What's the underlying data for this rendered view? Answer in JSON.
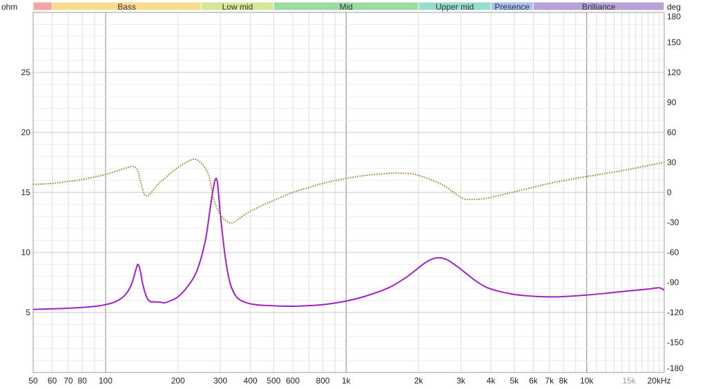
{
  "chart_data": {
    "type": "line",
    "left_unit": "ohm",
    "right_unit": "deg",
    "x_scale": "log",
    "xlim": [
      50,
      21000
    ],
    "ylim_left": [
      0,
      30
    ],
    "ylim_right": [
      -180,
      180
    ],
    "grid": true,
    "bands": [
      {
        "label": "",
        "from": 45,
        "to": 60,
        "color": "#f4a6a6"
      },
      {
        "label": "Bass",
        "from": 60,
        "to": 250,
        "color": "#f7dc8f"
      },
      {
        "label": "Low mid",
        "from": 250,
        "to": 500,
        "color": "#d3e897"
      },
      {
        "label": "Mid",
        "from": 500,
        "to": 2000,
        "color": "#9adc9f"
      },
      {
        "label": "Upper mid",
        "from": 2000,
        "to": 4000,
        "color": "#97dccf"
      },
      {
        "label": "Presence",
        "from": 4000,
        "to": 6000,
        "color": "#a8c0ee"
      },
      {
        "label": "Brilliance",
        "from": 6000,
        "to": 21000,
        "color": "#b7a4d6"
      }
    ],
    "x_ticks": [
      {
        "label": "50",
        "value": 50
      },
      {
        "label": "60",
        "value": 60
      },
      {
        "label": "70",
        "value": 70
      },
      {
        "label": "80",
        "value": 80
      },
      {
        "label": "100",
        "value": 100
      },
      {
        "label": "200",
        "value": 200
      },
      {
        "label": "300",
        "value": 300
      },
      {
        "label": "400",
        "value": 400
      },
      {
        "label": "500",
        "value": 500
      },
      {
        "label": "600",
        "value": 600
      },
      {
        "label": "800",
        "value": 800
      },
      {
        "label": "1k",
        "value": 1000
      },
      {
        "label": "2k",
        "value": 2000
      },
      {
        "label": "3k",
        "value": 3000
      },
      {
        "label": "4k",
        "value": 4000
      },
      {
        "label": "5k",
        "value": 5000
      },
      {
        "label": "6k",
        "value": 6000
      },
      {
        "label": "7k",
        "value": 7000
      },
      {
        "label": "8k",
        "value": 8000
      },
      {
        "label": "10k",
        "value": 10000
      },
      {
        "label": "15k",
        "value": 15000,
        "light": true
      },
      {
        "label": "20kHz",
        "value": 20000
      }
    ],
    "y_left_ticks": [
      5,
      10,
      15,
      20,
      25
    ],
    "y_right_ticks": [
      180,
      150,
      120,
      90,
      60,
      30,
      0,
      -30,
      -60,
      -90,
      -120,
      -150,
      -180
    ],
    "series": [
      {
        "axis": "left",
        "color": "#a020c8",
        "style": "solid",
        "points": [
          [
            50,
            5.25
          ],
          [
            60,
            5.3
          ],
          [
            70,
            5.35
          ],
          [
            80,
            5.42
          ],
          [
            90,
            5.5
          ],
          [
            100,
            5.65
          ],
          [
            110,
            5.9
          ],
          [
            120,
            6.4
          ],
          [
            128,
            7.3
          ],
          [
            133,
            8.4
          ],
          [
            136,
            9.0
          ],
          [
            139,
            8.6
          ],
          [
            143,
            7.3
          ],
          [
            148,
            6.3
          ],
          [
            153,
            5.92
          ],
          [
            160,
            5.88
          ],
          [
            170,
            5.85
          ],
          [
            175,
            5.8
          ],
          [
            185,
            5.95
          ],
          [
            200,
            6.3
          ],
          [
            220,
            7.2
          ],
          [
            240,
            8.5
          ],
          [
            260,
            11.0
          ],
          [
            275,
            14.3
          ],
          [
            285,
            16.0
          ],
          [
            292,
            15.8
          ],
          [
            300,
            13.2
          ],
          [
            315,
            9.5
          ],
          [
            330,
            7.4
          ],
          [
            350,
            6.3
          ],
          [
            380,
            5.85
          ],
          [
            420,
            5.65
          ],
          [
            500,
            5.55
          ],
          [
            600,
            5.52
          ],
          [
            800,
            5.65
          ],
          [
            1000,
            5.95
          ],
          [
            1200,
            6.35
          ],
          [
            1500,
            7.05
          ],
          [
            1800,
            8.0
          ],
          [
            2100,
            9.05
          ],
          [
            2300,
            9.48
          ],
          [
            2450,
            9.55
          ],
          [
            2650,
            9.35
          ],
          [
            3000,
            8.6
          ],
          [
            3500,
            7.55
          ],
          [
            4000,
            6.95
          ],
          [
            5000,
            6.5
          ],
          [
            6000,
            6.35
          ],
          [
            7000,
            6.3
          ],
          [
            8000,
            6.32
          ],
          [
            10000,
            6.45
          ],
          [
            12000,
            6.6
          ],
          [
            15000,
            6.8
          ],
          [
            18000,
            6.95
          ],
          [
            20000,
            7.05
          ],
          [
            21000,
            6.85
          ]
        ]
      },
      {
        "axis": "right",
        "color": "#9c7a1a",
        "style": "dotted",
        "points": [
          [
            50,
            8
          ],
          [
            60,
            9
          ],
          [
            70,
            11
          ],
          [
            80,
            13
          ],
          [
            100,
            18
          ],
          [
            120,
            24
          ],
          [
            130,
            26
          ],
          [
            136,
            22
          ],
          [
            140,
            10
          ],
          [
            145,
            -2
          ],
          [
            150,
            -3
          ],
          [
            155,
            0
          ],
          [
            165,
            8
          ],
          [
            180,
            16
          ],
          [
            200,
            25
          ],
          [
            230,
            33
          ],
          [
            245,
            31
          ],
          [
            260,
            24
          ],
          [
            270,
            15
          ],
          [
            280,
            -5
          ],
          [
            290,
            -15
          ],
          [
            300,
            -22
          ],
          [
            320,
            -29
          ],
          [
            340,
            -30
          ],
          [
            380,
            -22
          ],
          [
            430,
            -15
          ],
          [
            500,
            -8
          ],
          [
            600,
            0
          ],
          [
            700,
            5
          ],
          [
            800,
            9
          ],
          [
            1000,
            14
          ],
          [
            1200,
            17
          ],
          [
            1500,
            19
          ],
          [
            1800,
            19
          ],
          [
            2000,
            17
          ],
          [
            2500,
            8
          ],
          [
            3000,
            -5
          ],
          [
            3300,
            -7
          ],
          [
            3800,
            -6
          ],
          [
            4500,
            -2
          ],
          [
            5500,
            3
          ],
          [
            7000,
            9
          ],
          [
            9000,
            14
          ],
          [
            12000,
            19
          ],
          [
            15000,
            23
          ],
          [
            18000,
            27
          ],
          [
            21000,
            30
          ]
        ]
      }
    ]
  }
}
